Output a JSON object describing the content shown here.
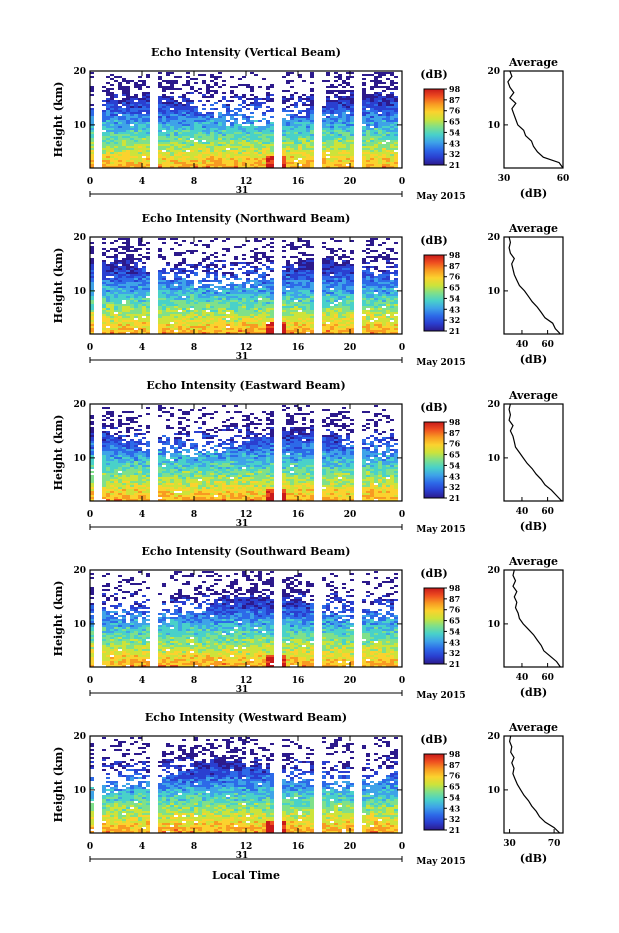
{
  "colors": {
    "colormap": [
      "#2c1a8c",
      "#2a3fd0",
      "#2d6ae8",
      "#3ea3e8",
      "#49d1c9",
      "#7fe08a",
      "#cde33a",
      "#fbd22e",
      "#f89a22",
      "#ef4e20",
      "#c81a1a"
    ],
    "axis": "#000000",
    "missing": "#ffffff"
  },
  "figure": {
    "xlabel_bottom": "Local Time",
    "date_label": "May 2015",
    "day_label": "31"
  },
  "chart_data": [
    {
      "type": "heatmap",
      "title": "Echo Intensity (Vertical Beam)",
      "ylabel": "Height (km)",
      "xticks": [
        "0",
        "4",
        "8",
        "12",
        "16",
        "20",
        "0"
      ],
      "yticks": [
        "20",
        "10"
      ],
      "ylim": [
        2,
        20
      ],
      "colorbar": {
        "label": "(dB)",
        "ticks": [
          "98",
          "87",
          "76",
          "65",
          "54",
          "43",
          "32",
          "21"
        ]
      },
      "gaps": [
        0.6,
        4.9,
        14.6,
        17.6,
        20.6,
        24.0
      ],
      "profile": {
        "title": "Average",
        "xlabel": "(dB)",
        "xticks": [
          "30",
          "60"
        ],
        "xlim": [
          30,
          60
        ],
        "yticks": [
          "20",
          "10"
        ],
        "heights": [
          2,
          3,
          4,
          5,
          6,
          7,
          8,
          9,
          10,
          11,
          12,
          13,
          14,
          15,
          16,
          17,
          18,
          19,
          20
        ],
        "values": [
          60,
          58,
          50,
          47,
          45,
          44,
          41,
          40,
          37,
          36,
          35,
          34,
          36,
          33,
          35,
          33,
          32,
          34,
          33
        ]
      }
    },
    {
      "type": "heatmap",
      "title": "Echo Intensity (Northward Beam)",
      "ylabel": "Height (km)",
      "xticks": [
        "0",
        "4",
        "8",
        "12",
        "16",
        "20",
        "0"
      ],
      "yticks": [
        "20",
        "10"
      ],
      "ylim": [
        2,
        20
      ],
      "colorbar": {
        "label": "(dB)",
        "ticks": [
          "98",
          "87",
          "76",
          "65",
          "54",
          "43",
          "32",
          "21"
        ]
      },
      "gaps": [
        0.6,
        4.9,
        14.6,
        17.6,
        20.6,
        24.0
      ],
      "profile": {
        "title": "Average",
        "xlabel": "(dB)",
        "xticks": [
          "40",
          "60"
        ],
        "xlim": [
          26,
          72
        ],
        "yticks": [
          "20",
          "10"
        ],
        "heights": [
          2,
          3,
          4,
          5,
          6,
          7,
          8,
          9,
          10,
          11,
          12,
          13,
          14,
          15,
          16,
          17,
          18,
          19,
          20
        ],
        "values": [
          70,
          66,
          64,
          58,
          55,
          52,
          48,
          45,
          42,
          38,
          36,
          34,
          33,
          32,
          34,
          31,
          30,
          31,
          30
        ]
      }
    },
    {
      "type": "heatmap",
      "title": "Echo Intensity (Eastward Beam)",
      "ylabel": "Height (km)",
      "xticks": [
        "0",
        "4",
        "8",
        "12",
        "16",
        "20",
        "0"
      ],
      "yticks": [
        "20",
        "10"
      ],
      "ylim": [
        2,
        20
      ],
      "colorbar": {
        "label": "(dB)",
        "ticks": [
          "98",
          "87",
          "76",
          "65",
          "54",
          "43",
          "32",
          "21"
        ]
      },
      "gaps": [
        0.6,
        4.9,
        14.6,
        17.6,
        20.6,
        24.0
      ],
      "profile": {
        "title": "Average",
        "xlabel": "(dB)",
        "xticks": [
          "40",
          "60"
        ],
        "xlim": [
          26,
          72
        ],
        "yticks": [
          "20",
          "10"
        ],
        "heights": [
          2,
          3,
          4,
          5,
          6,
          7,
          8,
          9,
          10,
          11,
          12,
          13,
          14,
          15,
          16,
          17,
          18,
          19,
          20
        ],
        "values": [
          71,
          67,
          63,
          58,
          55,
          51,
          48,
          44,
          41,
          38,
          35,
          34,
          33,
          31,
          33,
          30,
          31,
          30,
          31
        ]
      }
    },
    {
      "type": "heatmap",
      "title": "Echo Intensity (Southward Beam)",
      "ylabel": "Height (km)",
      "xticks": [
        "0",
        "4",
        "8",
        "12",
        "16",
        "20",
        "0"
      ],
      "yticks": [
        "20",
        "10"
      ],
      "ylim": [
        2,
        20
      ],
      "colorbar": {
        "label": "(dB)",
        "ticks": [
          "98",
          "87",
          "76",
          "65",
          "54",
          "43",
          "32",
          "21"
        ]
      },
      "gaps": [
        0.6,
        4.9,
        14.6,
        17.6,
        20.6,
        24.0
      ],
      "profile": {
        "title": "Average",
        "xlabel": "(dB)",
        "xticks": [
          "40",
          "60"
        ],
        "xlim": [
          26,
          72
        ],
        "yticks": [
          "20",
          "10"
        ],
        "heights": [
          2,
          3,
          4,
          5,
          6,
          7,
          8,
          9,
          10,
          11,
          12,
          13,
          14,
          15,
          16,
          17,
          18,
          19,
          20
        ],
        "values": [
          70,
          67,
          62,
          57,
          55,
          52,
          49,
          45,
          41,
          38,
          37,
          35,
          36,
          34,
          36,
          33,
          35,
          33,
          34
        ]
      }
    },
    {
      "type": "heatmap",
      "title": "Echo Intensity (Westward Beam)",
      "ylabel": "Height (km)",
      "xticks": [
        "0",
        "4",
        "8",
        "12",
        "16",
        "20",
        "0"
      ],
      "yticks": [
        "20",
        "10"
      ],
      "ylim": [
        2,
        20
      ],
      "colorbar": {
        "label": "(dB)",
        "ticks": [
          "98",
          "87",
          "76",
          "65",
          "54",
          "43",
          "32",
          "21"
        ]
      },
      "gaps": [
        0.6,
        4.9,
        14.6,
        17.6,
        20.6,
        24.0
      ],
      "profile": {
        "title": "Average",
        "xlabel": "(dB)",
        "xticks": [
          "30",
          "70"
        ],
        "xlim": [
          25,
          78
        ],
        "yticks": [
          "20",
          "10"
        ],
        "heights": [
          2,
          3,
          4,
          5,
          6,
          7,
          8,
          9,
          10,
          11,
          12,
          13,
          14,
          15,
          16,
          17,
          18,
          19,
          20
        ],
        "values": [
          75,
          70,
          62,
          57,
          54,
          50,
          47,
          43,
          40,
          37,
          35,
          33,
          34,
          32,
          34,
          31,
          32,
          30,
          31
        ]
      }
    }
  ]
}
